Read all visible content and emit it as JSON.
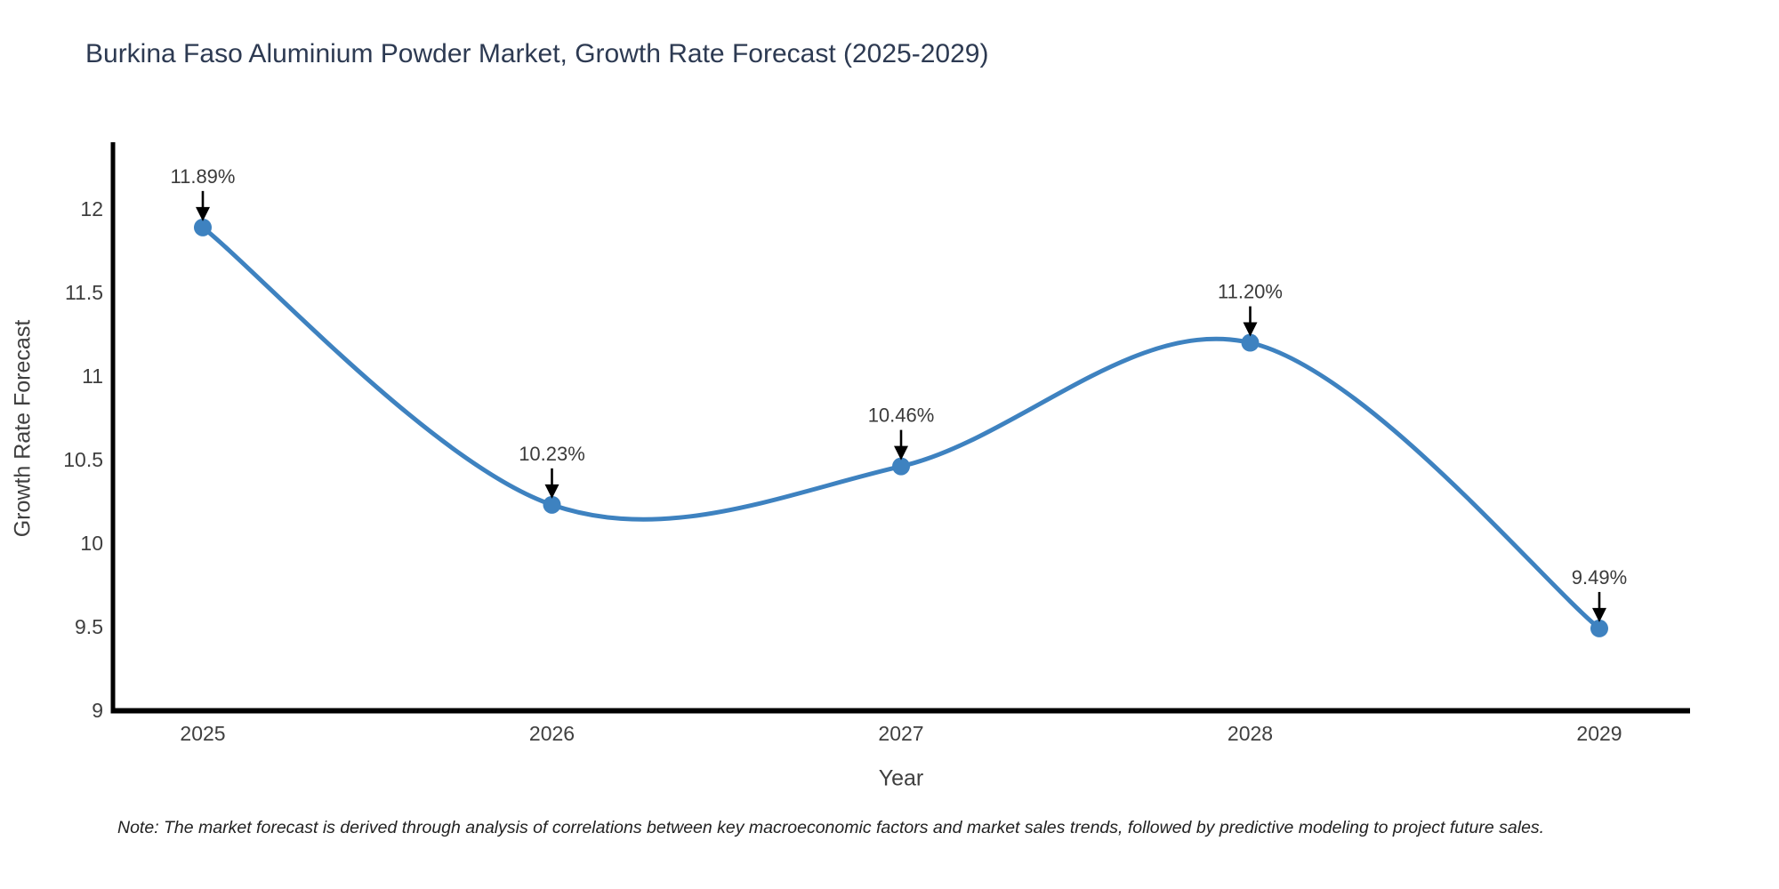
{
  "chart_data": {
    "type": "line",
    "title": "Burkina Faso Aluminium Powder Market, Growth Rate Forecast (2025-2029)",
    "xlabel": "Year",
    "ylabel": "Growth Rate Forecast",
    "categories": [
      "2025",
      "2026",
      "2027",
      "2028",
      "2029"
    ],
    "values": [
      11.89,
      10.23,
      10.46,
      11.2,
      9.49
    ],
    "point_labels": [
      "11.89%",
      "10.23%",
      "10.46%",
      "11.20%",
      "9.49%"
    ],
    "yticks": [
      "9",
      "9.5",
      "10",
      "10.5",
      "11",
      "11.5",
      "12"
    ],
    "ylim": [
      9,
      12.4
    ],
    "grid": false,
    "legend_position": "none",
    "smooth_spline": true,
    "line_color": "#3e82c0",
    "marker_color": "#3e82c0",
    "arrow_color": "#000000",
    "note": "Note: The market forecast is derived through analysis of correlations between key macroeconomic factors and market sales trends, followed by predictive modeling to project future sales."
  },
  "colors": {
    "background": "#ffffff",
    "title": "#2d3a52",
    "axis_text": "#3f3f3f",
    "spine": "#000000",
    "note_text": "#222222"
  }
}
